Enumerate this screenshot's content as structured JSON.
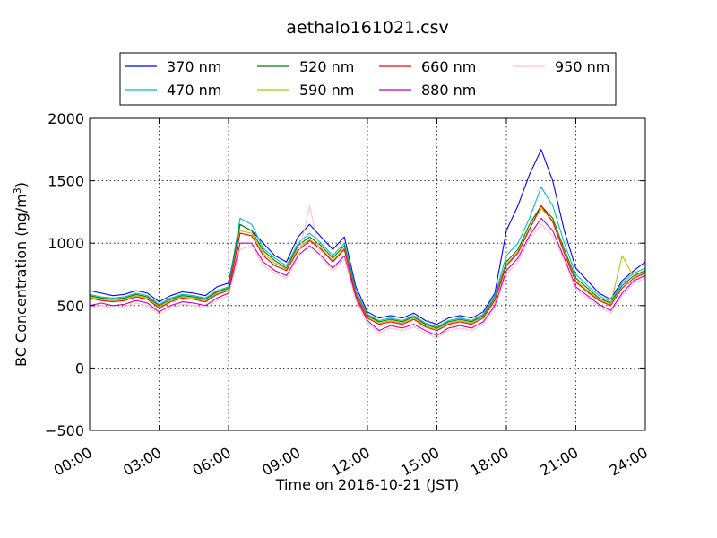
{
  "chart_data": {
    "type": "line",
    "title": "aethalo161021.csv",
    "xlabel": "Time on 2016-10-21 (JST)",
    "ylabel_main": "BC Concentration (ng/m",
    "ylabel_sup": "3",
    "ylabel_close": ")",
    "xlim": [
      0,
      24
    ],
    "ylim": [
      -500,
      2000
    ],
    "x_unit": "hours",
    "x_ticks": [
      0,
      3,
      6,
      9,
      12,
      15,
      18,
      21,
      24
    ],
    "x_tick_labels": [
      "00:00",
      "03:00",
      "06:00",
      "09:00",
      "12:00",
      "15:00",
      "18:00",
      "21:00",
      "24:00"
    ],
    "y_ticks": [
      -500,
      0,
      500,
      1000,
      1500,
      2000
    ],
    "y_tick_labels": [
      "−500",
      "0",
      "500",
      "1000",
      "1500",
      "2000"
    ],
    "grid": true,
    "legend_position": "top-center",
    "x": [
      0,
      0.5,
      1,
      1.5,
      2,
      2.5,
      3,
      3.5,
      4,
      4.5,
      5,
      5.5,
      6,
      6.5,
      7,
      7.5,
      8,
      8.5,
      9,
      9.5,
      10,
      10.5,
      11,
      11.5,
      12,
      12.5,
      13,
      13.5,
      14,
      14.5,
      15,
      15.5,
      16,
      16.5,
      17,
      17.5,
      18,
      18.5,
      19,
      19.5,
      20,
      20.5,
      21,
      21.5,
      22,
      22.5,
      23,
      23.5,
      24
    ],
    "series": [
      {
        "name": "370 nm",
        "color": "#0000ff",
        "values": [
          620,
          600,
          580,
          590,
          620,
          600,
          530,
          580,
          610,
          600,
          580,
          650,
          680,
          1150,
          1100,
          1000,
          900,
          850,
          1050,
          1150,
          1050,
          950,
          1050,
          650,
          450,
          400,
          420,
          400,
          440,
          380,
          350,
          400,
          420,
          400,
          450,
          600,
          1100,
          1300,
          1550,
          1750,
          1500,
          1100,
          800,
          700,
          600,
          550,
          700,
          780,
          850
        ]
      },
      {
        "name": "470 nm",
        "color": "#00bfbf",
        "values": [
          590,
          570,
          560,
          570,
          600,
          580,
          510,
          560,
          590,
          580,
          560,
          620,
          650,
          1200,
          1150,
          960,
          880,
          820,
          1000,
          1080,
          1000,
          900,
          1000,
          620,
          430,
          380,
          400,
          380,
          420,
          360,
          330,
          380,
          400,
          380,
          430,
          580,
          900,
          1000,
          1200,
          1450,
          1300,
          1000,
          750,
          660,
          580,
          530,
          680,
          760,
          800
        ]
      },
      {
        "name": "520 nm",
        "color": "#008000",
        "values": [
          580,
          560,
          550,
          560,
          590,
          570,
          500,
          550,
          580,
          570,
          550,
          610,
          640,
          1150,
          1100,
          940,
          860,
          800,
          980,
          1050,
          980,
          880,
          980,
          600,
          420,
          370,
          390,
          370,
          410,
          350,
          320,
          370,
          390,
          370,
          420,
          560,
          850,
          950,
          1150,
          1300,
          1200,
          950,
          720,
          640,
          560,
          520,
          660,
          740,
          780
        ]
      },
      {
        "name": "590 nm",
        "color": "#bfbf00",
        "values": [
          570,
          550,
          540,
          550,
          580,
          560,
          490,
          540,
          570,
          560,
          540,
          600,
          630,
          1100,
          1080,
          920,
          840,
          790,
          960,
          1030,
          960,
          860,
          960,
          590,
          410,
          360,
          380,
          360,
          400,
          340,
          310,
          360,
          380,
          360,
          410,
          550,
          830,
          930,
          1120,
          1280,
          1180,
          930,
          700,
          620,
          550,
          510,
          900,
          730,
          770
        ]
      },
      {
        "name": "660 nm",
        "color": "#ff0000",
        "values": [
          560,
          540,
          530,
          540,
          570,
          550,
          480,
          530,
          560,
          550,
          530,
          590,
          620,
          1080,
          1060,
          900,
          820,
          780,
          940,
          1020,
          950,
          850,
          950,
          580,
          400,
          350,
          370,
          350,
          390,
          330,
          300,
          350,
          370,
          350,
          400,
          540,
          820,
          920,
          1110,
          1300,
          1170,
          920,
          690,
          610,
          540,
          500,
          640,
          720,
          760
        ]
      },
      {
        "name": "880 nm",
        "color": "#bf00bf",
        "values": [
          500,
          520,
          500,
          510,
          540,
          520,
          450,
          500,
          530,
          520,
          500,
          560,
          600,
          1000,
          1000,
          850,
          780,
          740,
          900,
          980,
          900,
          800,
          900,
          560,
          380,
          300,
          340,
          320,
          350,
          300,
          260,
          320,
          340,
          320,
          370,
          500,
          780,
          880,
          1060,
          1200,
          1100,
          880,
          650,
          580,
          510,
          460,
          600,
          700,
          740
        ]
      },
      {
        "name": "950 nm",
        "color": "#ffc0cb",
        "values": [
          480,
          500,
          480,
          490,
          520,
          500,
          430,
          480,
          510,
          500,
          480,
          540,
          580,
          950,
          980,
          820,
          760,
          720,
          880,
          1300,
          880,
          780,
          880,
          540,
          360,
          280,
          320,
          300,
          330,
          280,
          240,
          300,
          320,
          300,
          350,
          480,
          750,
          850,
          1040,
          1150,
          1060,
          860,
          630,
          560,
          490,
          440,
          580,
          680,
          720
        ]
      }
    ]
  }
}
